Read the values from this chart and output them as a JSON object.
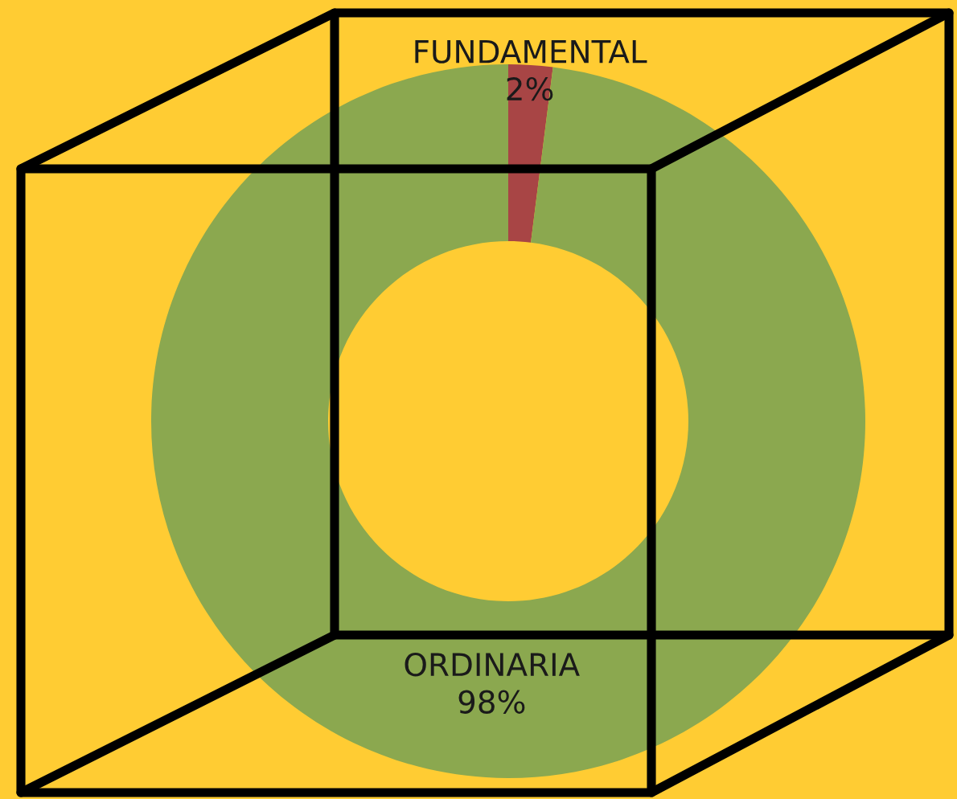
{
  "chart_data": {
    "type": "donut",
    "categories": [
      "FUNDAMENTAL",
      "ORDINARIA"
    ],
    "values": [
      2,
      98
    ],
    "colors": [
      "#a84545",
      "#8ba84f"
    ],
    "value_labels": [
      "2%",
      "98%"
    ]
  }
}
